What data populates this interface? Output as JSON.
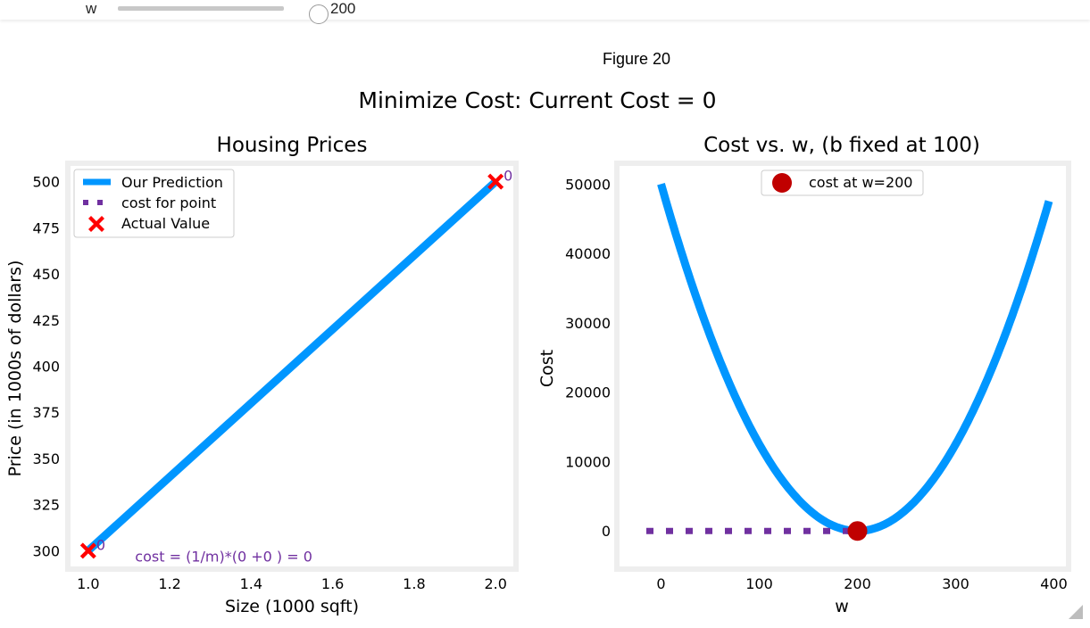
{
  "widget": {
    "label": "w",
    "value": "200",
    "fraction": 0.5
  },
  "figure": {
    "label": "Figure 20",
    "suptitle": "Minimize Cost: Current Cost = 0"
  },
  "colors": {
    "blue": "#0096ff",
    "red": "#ff0000",
    "darkred": "#c00000",
    "purple": "#7030a0",
    "frame": "#eeeeee"
  },
  "chart_data": [
    {
      "type": "line",
      "title": "Housing Prices",
      "xlabel": "Size (1000 sqft)",
      "ylabel": "Price (in 1000s of dollars)",
      "xlim": [
        0.95,
        2.05
      ],
      "ylim": [
        290,
        510
      ],
      "xticks": [
        1.0,
        1.2,
        1.4,
        1.6,
        1.8,
        2.0
      ],
      "xtick_labels": [
        "1.0",
        "1.2",
        "1.4",
        "1.6",
        "1.8",
        "2.0"
      ],
      "yticks": [
        300,
        325,
        350,
        375,
        400,
        425,
        450,
        475,
        500
      ],
      "ytick_labels": [
        "300",
        "325",
        "350",
        "375",
        "400",
        "425",
        "450",
        "475",
        "500"
      ],
      "series": [
        {
          "name": "Our Prediction",
          "kind": "line",
          "x": [
            1.0,
            2.0
          ],
          "y": [
            300,
            500
          ]
        },
        {
          "name": "cost for point",
          "kind": "dotted",
          "x": [],
          "y": []
        },
        {
          "name": "Actual Value",
          "kind": "marker",
          "x": [
            1.0,
            2.0
          ],
          "y": [
            300,
            500
          ]
        }
      ],
      "point_labels": [
        {
          "x": 1.0,
          "y": 300,
          "text": "0"
        },
        {
          "x": 2.0,
          "y": 500,
          "text": "0"
        }
      ],
      "annotation": {
        "x": 1.115,
        "y": 297,
        "text": "cost = (1/m)*(0 +0 ) = 0"
      },
      "legend": "top-left"
    },
    {
      "type": "line",
      "title": "Cost vs. w, (b fixed at 100)",
      "xlabel": "w",
      "ylabel": "Cost",
      "xlim": [
        -45,
        415
      ],
      "ylim": [
        -5500,
        53000
      ],
      "xticks": [
        0,
        100,
        200,
        300,
        400
      ],
      "xtick_labels": [
        "0",
        "100",
        "200",
        "300",
        "400"
      ],
      "yticks": [
        0,
        10000,
        20000,
        30000,
        40000,
        50000
      ],
      "ytick_labels": [
        "0",
        "10000",
        "20000",
        "30000",
        "40000",
        "50000"
      ],
      "series": [
        {
          "name": "",
          "kind": "line",
          "function": "1.25*(w-200)^2",
          "w_range": [
            0,
            395
          ]
        },
        {
          "name": "",
          "kind": "dotted",
          "x": [
            -15,
            200
          ],
          "y": [
            0,
            0
          ]
        },
        {
          "name": "",
          "kind": "dotted",
          "x": [
            200,
            200
          ],
          "y": [
            0,
            -1800
          ]
        },
        {
          "name": "cost at w=200",
          "kind": "dot",
          "x": [
            200
          ],
          "y": [
            0
          ]
        }
      ],
      "legend": "top-center"
    }
  ]
}
